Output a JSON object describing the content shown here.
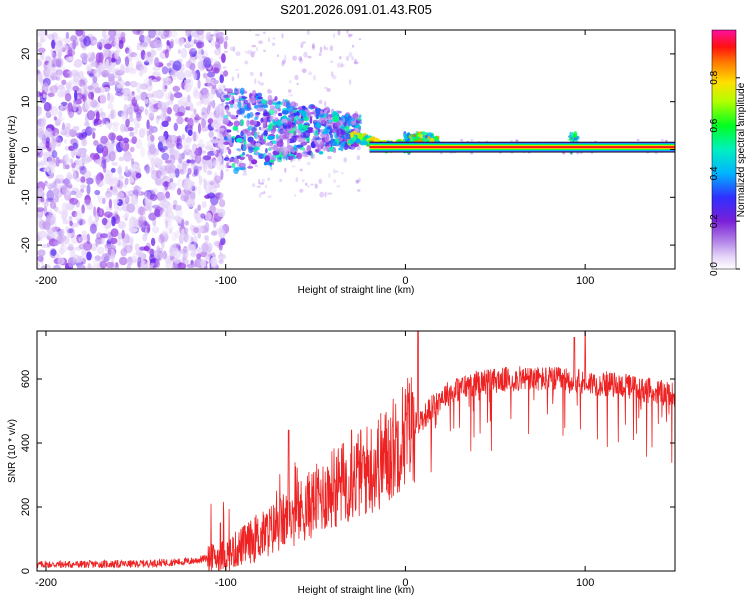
{
  "title": "S201.2026.091.01.43.R05",
  "chart_data": [
    {
      "type": "heatmap",
      "name": "spectrogram",
      "xlabel": "Height of straight line (km)",
      "ylabel": "Frequency (Hz)",
      "xlim": [
        -205,
        150
      ],
      "ylim": [
        -25,
        25
      ],
      "x_ticks": [
        -200,
        -100,
        0,
        100
      ],
      "y_ticks": [
        -20,
        -10,
        0,
        10,
        20
      ],
      "colorbar": {
        "label": "Normalized spectral amplitude",
        "range": [
          0,
          1
        ],
        "ticks": [
          "0.0",
          "0.2",
          "0.4",
          "0.6",
          "0.8"
        ],
        "tick_values": [
          0.0,
          0.2,
          0.4,
          0.6,
          0.8
        ],
        "colors": [
          "#ffffff",
          "#d9c2f5",
          "#8a2be2",
          "#2020ff",
          "#00ccff",
          "#00ff66",
          "#ffff00",
          "#ff8000",
          "#ff0000",
          "#ff00aa"
        ]
      },
      "carrier_line": {
        "frequency_hz": 0.5,
        "x_start": -20,
        "x_end": 150
      },
      "peak_spikes_x": [
        2,
        94
      ]
    },
    {
      "type": "line",
      "name": "snr",
      "xlabel": "Height of straight line (km)",
      "ylabel": "SNR (10 * v/v)",
      "xlim": [
        -205,
        150
      ],
      "ylim": [
        0,
        750
      ],
      "x_ticks": [
        -200,
        -100,
        0,
        100
      ],
      "y_ticks": [
        0,
        200,
        400,
        600
      ],
      "color": "#ee2222",
      "envelope": {
        "x": [
          -205,
          -150,
          -120,
          -100,
          -80,
          -60,
          -40,
          -20,
          -10,
          0,
          10,
          20,
          30,
          40,
          60,
          80,
          100,
          120,
          140,
          150
        ],
        "y": [
          20,
          22,
          30,
          50,
          110,
          180,
          260,
          320,
          360,
          440,
          480,
          545,
          570,
          590,
          600,
          600,
          590,
          580,
          560,
          550
        ]
      },
      "spikes": [
        {
          "x": -65,
          "y": 440
        },
        {
          "x": -30,
          "y": 440
        },
        {
          "x": 7,
          "y": 750
        },
        {
          "x": 94,
          "y": 730
        },
        {
          "x": 100,
          "y": 750
        }
      ]
    }
  ]
}
